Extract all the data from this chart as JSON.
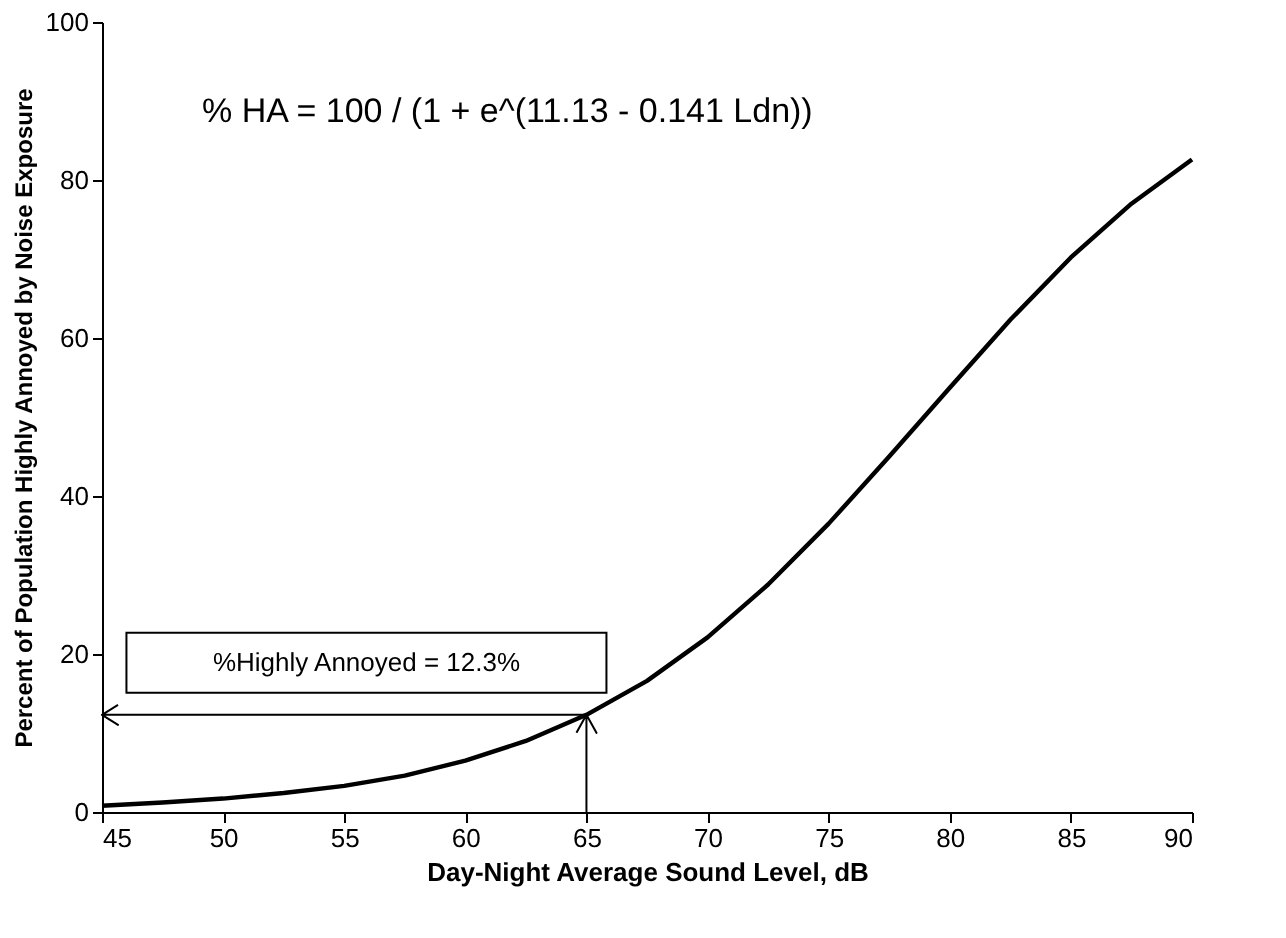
{
  "chart_data": {
    "type": "line",
    "xlabel": "Day-Night Average Sound Level, dB",
    "ylabel": "Percent of Population Highly Annoyed by Noise Exposure",
    "x": [
      45,
      47.5,
      50,
      52.5,
      55,
      57.5,
      60,
      62.5,
      65,
      67.5,
      70,
      72.5,
      75,
      77.5,
      80,
      82.5,
      85,
      87.5,
      90
    ],
    "series": [
      {
        "color": "#000000",
        "values": [
          0.8,
          1.2,
          1.7,
          2.4,
          3.3,
          4.6,
          6.5,
          9.0,
          12.3,
          16.6,
          22.1,
          28.8,
          36.5,
          45.0,
          53.7,
          62.3,
          70.2,
          77.0,
          82.6
        ]
      }
    ],
    "xlim": [
      45,
      90
    ],
    "xticks": [
      45,
      50,
      55,
      60,
      65,
      70,
      75,
      80,
      85,
      90
    ],
    "ylim": [
      0,
      100
    ],
    "yticks": [
      0,
      20,
      40,
      60,
      80,
      100
    ],
    "ref_lines": [
      {
        "axis": "y",
        "value": 12.3,
        "color": "#000000"
      },
      {
        "axis": "x",
        "value": 65,
        "color": "#000000"
      }
    ],
    "grid": false,
    "legend": false,
    "marker": "none",
    "line_style": "solid",
    "annotations": [
      "% HA = 100 / (1 + e^(11.13 - 0.141 Ldn))",
      {
        "text": "%Highly Annoyed = 12.3%",
        "x": 65,
        "y": 12.3
      }
    ]
  }
}
